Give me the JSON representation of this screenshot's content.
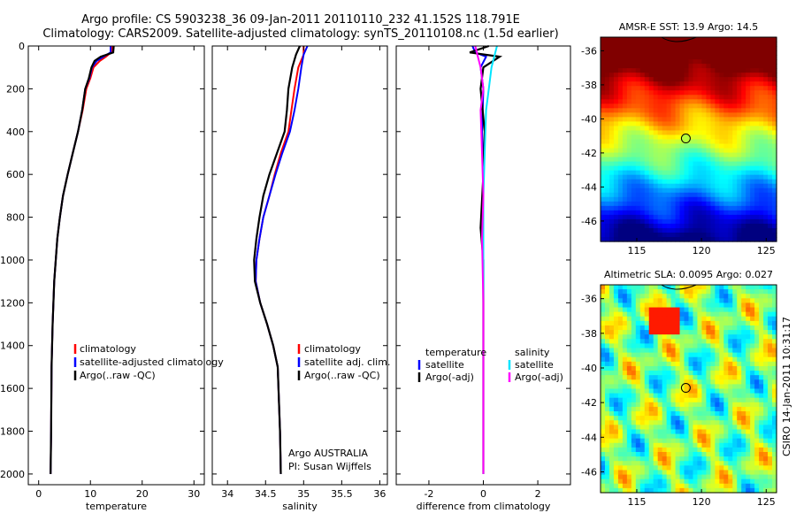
{
  "header": {
    "line1": "Argo profile: CS 5903238_36 09-Jan-2011 20110110_232 41.152S 118.791E",
    "line2": "Climatology: CARS2009. Satellite-adjusted climatology: synTS_20110108.nc (1.5d earlier)"
  },
  "side_text": "CSIRO 14-Jan-2011 10:31:17",
  "colors": {
    "climatology": "#ff0000",
    "satellite": "#0000ff",
    "argo": "#000000",
    "salinity_satellite": "#00e5ff",
    "salinity_argo": "#ff00ff"
  },
  "chart_data": [
    {
      "type": "line",
      "xlabel": "temperature",
      "ylabel": "",
      "xlim": [
        -2,
        32
      ],
      "ylim": [
        0,
        2050
      ],
      "x_ticks": [
        "0",
        "10",
        "20",
        "30"
      ],
      "y_ticks": [
        "0",
        "200",
        "400",
        "600",
        "800",
        "1000",
        "1200",
        "1400",
        "1600",
        "1800",
        "2000"
      ],
      "legend": [
        "climatology",
        "satellite-adjusted climatology",
        "Argo(..raw -QC)"
      ],
      "series": [
        {
          "name": "climatology",
          "color": "#ff0000",
          "x": [
            14.3,
            14.0,
            13.0,
            11.8,
            10.6,
            10.0,
            9.2,
            8.5,
            7.6,
            6.6,
            5.6,
            4.7,
            4.1,
            3.6,
            3.0,
            2.7,
            2.5,
            2.4,
            2.3
          ],
          "y": [
            0,
            30,
            50,
            70,
            100,
            150,
            200,
            300,
            400,
            500,
            600,
            700,
            800,
            900,
            1100,
            1300,
            1500,
            1800,
            2000
          ]
        },
        {
          "name": "satellite-adjusted climatology",
          "color": "#0000ff",
          "x": [
            13.9,
            13.9,
            12.5,
            11.2,
            10.3,
            9.8,
            9.0,
            8.4,
            7.6,
            6.6,
            5.6,
            4.7,
            4.1,
            3.6,
            3.0,
            2.7,
            2.5,
            2.4,
            2.3
          ],
          "y": [
            0,
            30,
            50,
            70,
            100,
            150,
            200,
            300,
            400,
            500,
            600,
            700,
            800,
            900,
            1100,
            1300,
            1500,
            1800,
            2000
          ]
        },
        {
          "name": "Argo(..raw -QC)",
          "color": "#000000",
          "x": [
            14.5,
            14.4,
            12.0,
            10.8,
            10.2,
            9.7,
            9.0,
            8.4,
            7.6,
            6.6,
            5.6,
            4.7,
            4.1,
            3.6,
            3.0,
            2.7,
            2.5,
            2.4,
            2.3
          ],
          "y": [
            0,
            30,
            50,
            70,
            100,
            150,
            200,
            300,
            400,
            500,
            600,
            700,
            800,
            900,
            1100,
            1300,
            1500,
            1800,
            2000
          ]
        }
      ]
    },
    {
      "type": "line",
      "xlabel": "salinity",
      "xlim": [
        33.8,
        36.1
      ],
      "ylim": [
        0,
        2050
      ],
      "x_ticks": [
        "34",
        "34.5",
        "35",
        "35.5",
        "36"
      ],
      "legend": [
        "climatology",
        "satellite adj. clim.",
        "Argo(..raw -QC)"
      ],
      "annotation": [
        "Argo AUSTRALIA",
        "PI: Susan Wijffels"
      ],
      "series": [
        {
          "name": "climatology",
          "color": "#ff0000",
          "x": [
            35.0,
            35.0,
            34.93,
            34.88,
            34.84,
            34.8,
            34.7,
            34.62,
            34.55,
            34.47,
            34.42,
            34.38,
            34.37,
            34.43,
            34.52,
            34.6,
            34.66,
            34.69,
            34.7
          ],
          "y": [
            0,
            40,
            100,
            200,
            300,
            400,
            500,
            600,
            700,
            800,
            900,
            1000,
            1100,
            1200,
            1300,
            1400,
            1500,
            1800,
            2000
          ]
        },
        {
          "name": "satellite adj. clim.",
          "color": "#0000ff",
          "x": [
            35.05,
            35.0,
            34.97,
            34.93,
            34.88,
            34.82,
            34.72,
            34.63,
            34.55,
            34.47,
            34.42,
            34.38,
            34.37,
            34.43,
            34.52,
            34.6,
            34.66,
            34.69,
            34.7
          ],
          "y": [
            0,
            40,
            100,
            200,
            300,
            400,
            500,
            600,
            700,
            800,
            900,
            1000,
            1100,
            1200,
            1300,
            1400,
            1500,
            1800,
            2000
          ]
        },
        {
          "name": "Argo(..raw -QC)",
          "color": "#000000",
          "x": [
            34.95,
            34.9,
            34.85,
            34.8,
            34.78,
            34.75,
            34.65,
            34.55,
            34.47,
            34.42,
            34.38,
            34.35,
            34.36,
            34.43,
            34.52,
            34.6,
            34.66,
            34.69,
            34.7
          ],
          "y": [
            0,
            40,
            100,
            200,
            300,
            400,
            500,
            600,
            700,
            800,
            900,
            1000,
            1100,
            1200,
            1300,
            1400,
            1500,
            1800,
            2000
          ]
        }
      ]
    },
    {
      "type": "line",
      "xlabel": "difference from climatology",
      "xlim": [
        -3.2,
        3.2
      ],
      "ylim": [
        0,
        2050
      ],
      "x_ticks": [
        "-2",
        "0",
        "2"
      ],
      "legend": [
        "temperature",
        "satellite",
        "Argo(-adj)",
        "salinity",
        "satellite",
        "Argo(-adj)"
      ],
      "series": [
        {
          "name": "temperature satellite",
          "color": "#0000ff",
          "x": [
            -0.4,
            -0.3,
            0.1,
            -0.1,
            0.0,
            -0.05,
            0.0,
            0.0,
            0.0,
            0.0,
            0.0,
            0.0
          ],
          "y": [
            0,
            30,
            50,
            100,
            200,
            400,
            600,
            800,
            1000,
            1400,
            1800,
            2000
          ]
        },
        {
          "name": "temperature Argo(-adj)",
          "color": "#000000",
          "x": [
            0.2,
            -0.5,
            0.6,
            0.0,
            -0.1,
            0.05,
            0.0,
            -0.1,
            0.0,
            0.0,
            0.0,
            0.0
          ],
          "y": [
            0,
            30,
            50,
            100,
            200,
            400,
            600,
            850,
            1000,
            1400,
            1800,
            2000
          ]
        },
        {
          "name": "salinity satellite",
          "color": "#00e5ff",
          "x": [
            0.5,
            0.4,
            0.3,
            0.2,
            0.1,
            0.05,
            0.0,
            0.0,
            0.0,
            0.0,
            0.0
          ],
          "y": [
            0,
            50,
            100,
            200,
            300,
            500,
            700,
            900,
            1200,
            1600,
            2000
          ]
        },
        {
          "name": "salinity Argo(-adj)",
          "color": "#ff00ff",
          "x": [
            -0.3,
            -0.2,
            -0.1,
            0.0,
            -0.1,
            -0.05,
            0.0,
            -0.05,
            0.0,
            0.0,
            0.0
          ],
          "y": [
            0,
            50,
            100,
            200,
            300,
            500,
            700,
            900,
            1200,
            1600,
            2000
          ]
        }
      ]
    },
    {
      "type": "heatmap",
      "title": "AMSR-E SST: 13.9  Argo: 14.5",
      "xlim": [
        112.2,
        125.8
      ],
      "ylim": [
        -47.2,
        -35.2
      ],
      "x_ticks": [
        "115",
        "120",
        "125"
      ],
      "y_ticks": [
        "-36",
        "-38",
        "-40",
        "-42",
        "-44",
        "-46"
      ],
      "argo_position": {
        "lon": 118.79,
        "lat": -41.15
      },
      "colormap": "jet"
    },
    {
      "type": "heatmap",
      "title": "Altimetric SLA: 0.0095  Argo: 0.027",
      "xlim": [
        112.2,
        125.8
      ],
      "ylim": [
        -47.2,
        -35.2
      ],
      "x_ticks": [
        "115",
        "120",
        "125"
      ],
      "y_ticks": [
        "-36",
        "-38",
        "-40",
        "-42",
        "-44",
        "-46"
      ],
      "argo_position": {
        "lon": 118.79,
        "lat": -41.15
      },
      "colormap": "jet"
    }
  ]
}
